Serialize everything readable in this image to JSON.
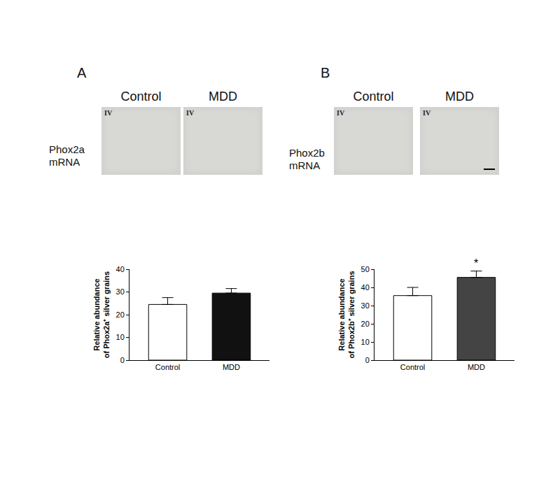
{
  "panels": [
    {
      "label": "A",
      "conditions": [
        "Control",
        "MDD"
      ],
      "row_label": "Phox2a mRNA",
      "region_label": "IV"
    },
    {
      "label": "B",
      "conditions": [
        "Control",
        "MDD"
      ],
      "row_label": "Phox2b mRNA",
      "region_label": "IV"
    }
  ],
  "chart_data": [
    {
      "type": "bar",
      "categories": [
        "Control",
        "MDD"
      ],
      "values": [
        24.5,
        29.5
      ],
      "errors": [
        3,
        2
      ],
      "colors": [
        "#ffffff",
        "#111111"
      ],
      "ylim": [
        0,
        40
      ],
      "yticks": [
        0,
        10,
        20,
        30,
        40
      ],
      "y_label": [
        "Relative abundance",
        "of Phox2a⁺ silver grains"
      ],
      "grid": false
    },
    {
      "type": "bar",
      "categories": [
        "Control",
        "MDD"
      ],
      "values": [
        35.5,
        45.5
      ],
      "errors": [
        4.5,
        3.5
      ],
      "colors": [
        "#ffffff",
        "#444444"
      ],
      "ylim": [
        0,
        50
      ],
      "yticks": [
        0,
        10,
        20,
        30,
        40,
        50
      ],
      "y_label": [
        "Relative abundance",
        "of Phox2b⁺ silver grains"
      ],
      "grid": false,
      "annotations": [
        {
          "x": "MDD",
          "text": "*"
        }
      ]
    }
  ]
}
